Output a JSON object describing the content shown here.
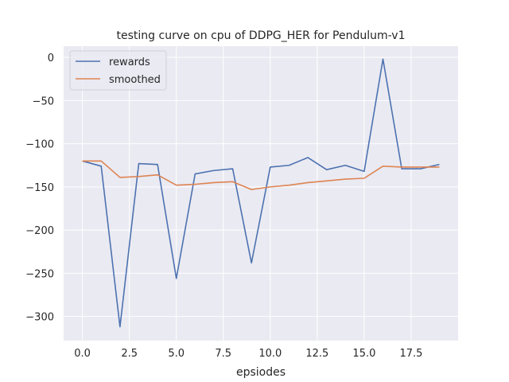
{
  "chart_data": {
    "type": "line",
    "title": "testing curve on cpu of DDPG_HER for Pendulum-v1",
    "xlabel": "epsiodes",
    "ylabel": "",
    "xlim": [
      -1,
      20
    ],
    "ylim": [
      -328,
      13
    ],
    "x": [
      0,
      1,
      2,
      3,
      4,
      5,
      6,
      7,
      8,
      9,
      10,
      11,
      12,
      13,
      14,
      15,
      16,
      17,
      18,
      19
    ],
    "x_ticks": [
      0.0,
      2.5,
      5.0,
      7.5,
      10.0,
      12.5,
      15.0,
      17.5
    ],
    "x_tick_labels": [
      "0.0",
      "2.5",
      "5.0",
      "7.5",
      "10.0",
      "12.5",
      "15.0",
      "17.5"
    ],
    "y_ticks": [
      0,
      -50,
      -100,
      -150,
      -200,
      -250,
      -300
    ],
    "y_tick_labels": [
      "0",
      "−50",
      "−100",
      "−150",
      "−200",
      "−250",
      "−300"
    ],
    "grid": true,
    "legend_position": "top-left",
    "series": [
      {
        "name": "rewards",
        "color": "#4c72b0",
        "values": [
          -120,
          -126,
          -312,
          -123,
          -124,
          -256,
          -135,
          -131,
          -129,
          -238,
          -127,
          -125,
          -116,
          -130,
          -125,
          -132,
          -2,
          -129,
          -129,
          -124
        ]
      },
      {
        "name": "smoothed",
        "color": "#dd8452",
        "values": [
          -120,
          -120,
          -139,
          -138,
          -136,
          -148,
          -147,
          -145,
          -144,
          -153,
          -150,
          -148,
          -145,
          -143,
          -141,
          -140,
          -126,
          -127,
          -127,
          -127
        ]
      }
    ]
  }
}
